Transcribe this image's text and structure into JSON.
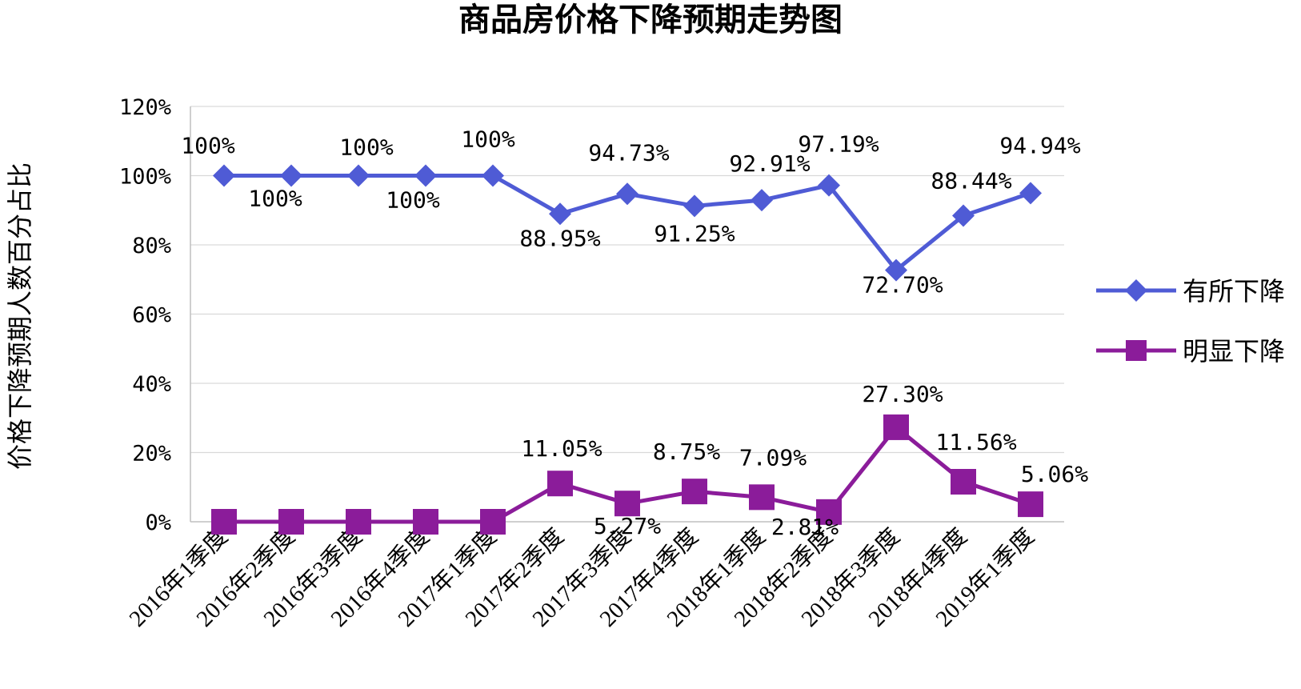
{
  "chart_data": {
    "type": "line",
    "title": "商品房价格下降预期走势图",
    "ylabel": "价格下降预期人数百分占比",
    "xlabel": "",
    "ylim": [
      0,
      120
    ],
    "yticks": [
      0,
      20,
      40,
      60,
      80,
      100,
      120
    ],
    "ytick_labels": [
      "0%",
      "20%",
      "40%",
      "60%",
      "80%",
      "100%",
      "120%"
    ],
    "grid": true,
    "legend_position": "right",
    "categories": [
      "2016年1季度",
      "2016年2季度",
      "2016年3季度",
      "2016年4季度",
      "2017年1季度",
      "2017年2季度",
      "2017年3季度",
      "2017年4季度",
      "2018年1季度",
      "2018年2季度",
      "2018年3季度",
      "2018年4季度",
      "2019年1季度"
    ],
    "series": [
      {
        "name": "有所下降",
        "color": "#4f5bd5",
        "marker": "diamond",
        "values": [
          100,
          100,
          100,
          100,
          100,
          88.95,
          94.73,
          91.25,
          92.91,
          97.19,
          72.7,
          88.44,
          94.94
        ],
        "labels": [
          "100%",
          "100%",
          "100%",
          "100%",
          "100%",
          "88.95%",
          "94.73%",
          "91.25%",
          "92.91%",
          "97.19%",
          "72.70%",
          "88.44%",
          "94.94%"
        ]
      },
      {
        "name": "明显下降",
        "color": "#8b1c9a",
        "marker": "square",
        "values": [
          0,
          0,
          0,
          0,
          0,
          11.05,
          5.27,
          8.75,
          7.09,
          2.81,
          27.3,
          11.56,
          5.06
        ],
        "labels": [
          "",
          "",
          "",
          "",
          "",
          "11.05%",
          "5.27%",
          "8.75%",
          "7.09%",
          "2.81%",
          "27.30%",
          "11.56%",
          "5.06%"
        ]
      }
    ]
  }
}
